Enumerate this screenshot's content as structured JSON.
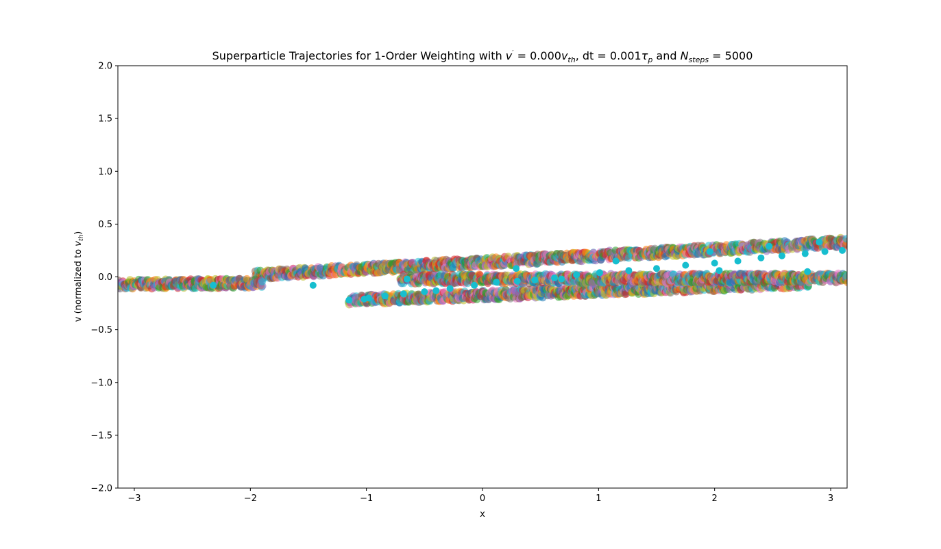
{
  "chart_data": {
    "type": "scatter",
    "title": "Superparticle Trajectories for 1-Order Weighting with v' = 0.000v_th, dt = 0.001τ_p and N_steps = 5000",
    "title_parts": {
      "prefix": "Superparticle Trajectories for 1-Order Weighting with ",
      "v": "v",
      "v_prime": "′",
      "eq1": " = 0.000",
      "vth_v": "v",
      "vth_sub": "th",
      "dt_text": ", dt = 0.001",
      "tau": "τ",
      "tau_sub": "p",
      "and_text": " and ",
      "n": "N",
      "n_sub": "steps",
      "eq2": " = 5000"
    },
    "xlabel": "x",
    "ylabel_parts": {
      "prefix": "v (normalized to ",
      "v": "v",
      "sub": "th",
      "suffix": ")"
    },
    "xlim": [
      -3.14159,
      3.14159
    ],
    "ylim": [
      -2.0,
      2.0
    ],
    "xticks": [
      -3,
      -2,
      -1,
      0,
      1,
      2,
      3
    ],
    "xtick_labels": [
      "−3",
      "−2",
      "−1",
      "0",
      "1",
      "2",
      "3"
    ],
    "yticks": [
      2.0,
      1.5,
      1.0,
      0.5,
      0.0,
      -0.5,
      -1.0,
      -1.5,
      -2.0
    ],
    "ytick_labels": [
      "2.0",
      "1.5",
      "1.0",
      "0.5",
      "0.0",
      "−0.5",
      "−1.0",
      "−1.5",
      "−2.0"
    ],
    "grid": false,
    "trajectory_color_palette": [
      "#1f77b4",
      "#ff7f0e",
      "#2ca02c",
      "#d62728",
      "#9467bd",
      "#8c564b",
      "#e377c2",
      "#7f7f7f",
      "#bcbd22",
      "#17becf"
    ],
    "final_points_color": "#17becf",
    "trajectory_bands": [
      {
        "name": "upper-band",
        "x_start": -1.95,
        "y_start": 0.02,
        "x_end": 3.14,
        "y_end": 0.33
      },
      {
        "name": "left-band",
        "x_start": -3.14,
        "y_start": -0.07,
        "x_end": -1.9,
        "y_end": -0.06
      },
      {
        "name": "lower-band",
        "x_start": -1.15,
        "y_start": -0.22,
        "x_end": 2.8,
        "y_end": -0.06
      },
      {
        "name": "near-zero-band",
        "x_start": -0.7,
        "y_start": -0.02,
        "x_end": 3.14,
        "y_end": -0.01
      }
    ],
    "final_points": [
      {
        "x": -2.32,
        "y": -0.08
      },
      {
        "x": -1.46,
        "y": -0.08
      },
      {
        "x": -1.15,
        "y": -0.22
      },
      {
        "x": -1.02,
        "y": -0.21
      },
      {
        "x": -0.98,
        "y": -0.2
      },
      {
        "x": -0.84,
        "y": -0.18
      },
      {
        "x": -0.68,
        "y": -0.16
      },
      {
        "x": -0.65,
        "y": -0.02
      },
      {
        "x": -0.5,
        "y": -0.14
      },
      {
        "x": -0.4,
        "y": -0.13
      },
      {
        "x": -0.28,
        "y": -0.11
      },
      {
        "x": -0.07,
        "y": -0.08
      },
      {
        "x": 0.12,
        "y": -0.05
      },
      {
        "x": 0.29,
        "y": 0.08
      },
      {
        "x": 0.3,
        "y": -0.04
      },
      {
        "x": 0.45,
        "y": -0.03
      },
      {
        "x": 0.62,
        "y": -0.01
      },
      {
        "x": 0.68,
        "y": -0.02
      },
      {
        "x": 0.81,
        "y": 0.02
      },
      {
        "x": 1.01,
        "y": 0.04
      },
      {
        "x": 1.15,
        "y": 0.15
      },
      {
        "x": 1.26,
        "y": 0.06
      },
      {
        "x": 1.5,
        "y": 0.08
      },
      {
        "x": 1.75,
        "y": 0.11
      },
      {
        "x": 1.96,
        "y": 0.24
      },
      {
        "x": 2.0,
        "y": 0.13
      },
      {
        "x": 2.04,
        "y": 0.06
      },
      {
        "x": 2.2,
        "y": 0.15
      },
      {
        "x": 2.4,
        "y": 0.18
      },
      {
        "x": 2.47,
        "y": 0.29
      },
      {
        "x": 2.58,
        "y": 0.2
      },
      {
        "x": 2.78,
        "y": 0.22
      },
      {
        "x": 2.8,
        "y": 0.05
      },
      {
        "x": 2.9,
        "y": 0.33
      },
      {
        "x": 2.95,
        "y": 0.24
      },
      {
        "x": 3.1,
        "y": 0.25
      }
    ]
  }
}
